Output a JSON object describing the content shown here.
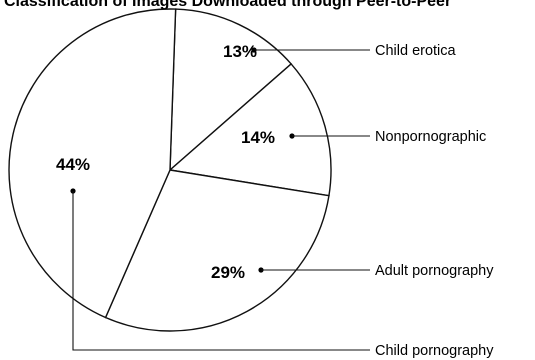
{
  "chart_data": {
    "type": "pie",
    "title": "Classification of Images Downloaded through Peer-to-Peer",
    "slices": [
      {
        "label": "Child erotica",
        "value": 13,
        "value_label": "13%"
      },
      {
        "label": "Nonpornographic",
        "value": 14,
        "value_label": "14%"
      },
      {
        "label": "Adult pornography",
        "value": 29,
        "value_label": "29%"
      },
      {
        "label": "Child pornography",
        "value": 44,
        "value_label": "44%"
      }
    ],
    "legend": "callout-lines-right"
  }
}
